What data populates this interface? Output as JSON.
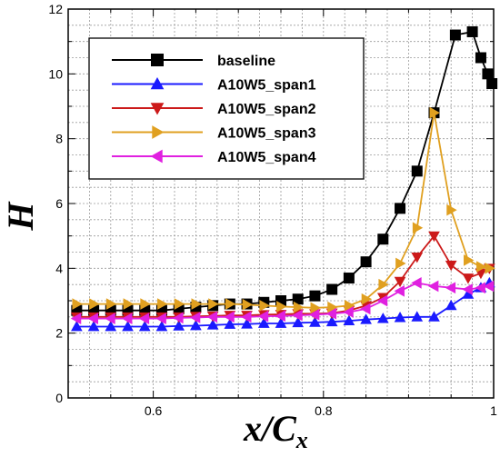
{
  "chart_data": {
    "type": "line",
    "title": "",
    "xlabel": "x/C",
    "xlabel_sub": "x",
    "ylabel": "H",
    "xlim": [
      0.5,
      1.0
    ],
    "ylim": [
      0,
      12
    ],
    "xticks": [
      0.6,
      0.8,
      1
    ],
    "xtick_labels": [
      "0.6",
      "0.8",
      "1"
    ],
    "yticks": [
      0,
      2,
      4,
      6,
      8,
      10,
      12
    ],
    "ytick_labels": [
      "0",
      "2",
      "4",
      "6",
      "8",
      "10",
      "12"
    ],
    "grid": true,
    "legend_position": "top-left",
    "series": [
      {
        "name": "baseline",
        "color": "#000000",
        "marker": "square",
        "x": [
          0.51,
          0.53,
          0.55,
          0.57,
          0.59,
          0.61,
          0.63,
          0.65,
          0.67,
          0.69,
          0.71,
          0.73,
          0.75,
          0.77,
          0.79,
          0.81,
          0.83,
          0.85,
          0.87,
          0.89,
          0.91,
          0.93,
          0.955,
          0.975,
          0.985,
          0.993,
          0.998
        ],
        "y": [
          2.7,
          2.7,
          2.7,
          2.7,
          2.7,
          2.7,
          2.75,
          2.8,
          2.85,
          2.9,
          2.9,
          2.95,
          3.0,
          3.05,
          3.15,
          3.35,
          3.7,
          4.2,
          4.9,
          5.85,
          7.0,
          8.8,
          11.2,
          11.3,
          10.5,
          10.0,
          9.7
        ]
      },
      {
        "name": "A10W5_span1",
        "color": "#1a1aff",
        "marker": "triangle-up",
        "x": [
          0.51,
          0.53,
          0.55,
          0.57,
          0.59,
          0.61,
          0.63,
          0.65,
          0.67,
          0.69,
          0.71,
          0.73,
          0.75,
          0.77,
          0.79,
          0.81,
          0.83,
          0.85,
          0.87,
          0.89,
          0.91,
          0.93,
          0.95,
          0.97,
          0.985,
          0.995
        ],
        "y": [
          2.2,
          2.2,
          2.2,
          2.2,
          2.2,
          2.2,
          2.22,
          2.23,
          2.25,
          2.27,
          2.28,
          2.3,
          2.3,
          2.32,
          2.33,
          2.35,
          2.38,
          2.42,
          2.45,
          2.48,
          2.5,
          2.5,
          2.85,
          3.2,
          3.4,
          3.55
        ]
      },
      {
        "name": "A10W5_span2",
        "color": "#cc1a1a",
        "marker": "triangle-down",
        "x": [
          0.51,
          0.53,
          0.55,
          0.57,
          0.59,
          0.61,
          0.63,
          0.65,
          0.67,
          0.69,
          0.71,
          0.73,
          0.75,
          0.77,
          0.79,
          0.81,
          0.83,
          0.85,
          0.87,
          0.89,
          0.91,
          0.93,
          0.95,
          0.97,
          0.985,
          0.995
        ],
        "y": [
          2.5,
          2.5,
          2.5,
          2.5,
          2.5,
          2.5,
          2.5,
          2.52,
          2.53,
          2.55,
          2.55,
          2.57,
          2.58,
          2.6,
          2.6,
          2.62,
          2.7,
          2.85,
          3.1,
          3.6,
          4.35,
          5.0,
          4.1,
          3.7,
          3.85,
          4.0
        ]
      },
      {
        "name": "A10W5_span3",
        "color": "#e0a020",
        "marker": "triangle-right",
        "x": [
          0.51,
          0.53,
          0.55,
          0.57,
          0.59,
          0.61,
          0.63,
          0.65,
          0.67,
          0.69,
          0.71,
          0.73,
          0.75,
          0.77,
          0.79,
          0.81,
          0.83,
          0.85,
          0.87,
          0.89,
          0.91,
          0.93,
          0.95,
          0.97,
          0.985,
          0.995
        ],
        "y": [
          2.9,
          2.9,
          2.9,
          2.9,
          2.9,
          2.9,
          2.9,
          2.9,
          2.9,
          2.9,
          2.88,
          2.85,
          2.82,
          2.8,
          2.78,
          2.8,
          2.85,
          3.05,
          3.5,
          4.15,
          5.25,
          8.8,
          5.8,
          4.25,
          4.05,
          4.0
        ]
      },
      {
        "name": "A10W5_span4",
        "color": "#e020e0",
        "marker": "triangle-left",
        "x": [
          0.51,
          0.53,
          0.55,
          0.57,
          0.59,
          0.61,
          0.63,
          0.65,
          0.67,
          0.69,
          0.71,
          0.73,
          0.75,
          0.77,
          0.79,
          0.81,
          0.83,
          0.85,
          0.87,
          0.89,
          0.91,
          0.93,
          0.95,
          0.97,
          0.985,
          0.995
        ],
        "y": [
          2.45,
          2.45,
          2.45,
          2.45,
          2.45,
          2.45,
          2.47,
          2.48,
          2.5,
          2.5,
          2.5,
          2.52,
          2.53,
          2.55,
          2.57,
          2.6,
          2.65,
          2.75,
          3.0,
          3.3,
          3.55,
          3.45,
          3.4,
          3.35,
          3.4,
          3.45
        ]
      }
    ]
  }
}
